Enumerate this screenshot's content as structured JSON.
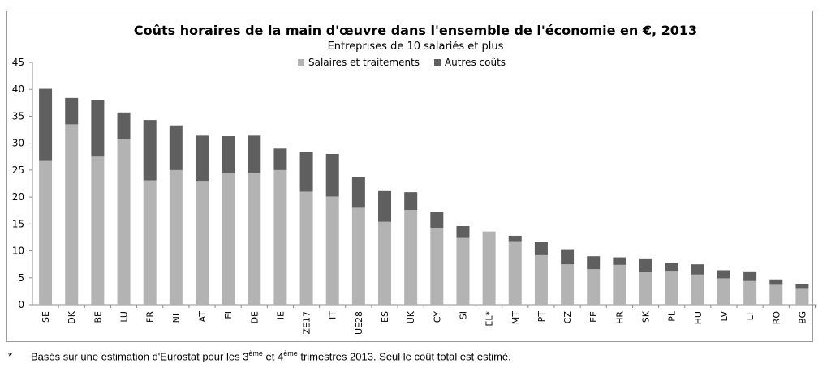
{
  "chart_data": {
    "type": "bar",
    "stacked": true,
    "title": "Coûts horaires de la main d'œuvre dans l'ensemble de l'économie en €, 2013",
    "subtitle": "Entreprises de 10 salariés et plus",
    "categories": [
      "SE",
      "DK",
      "BE",
      "LU",
      "FR",
      "NL",
      "AT",
      "FI",
      "DE",
      "IE",
      "ZE17",
      "IT",
      "UE28",
      "ES",
      "UK",
      "CY",
      "SI",
      "EL*",
      "MT",
      "PT",
      "CZ",
      "EE",
      "HR",
      "SK",
      "PL",
      "HU",
      "LV",
      "LT",
      "RO",
      "BG"
    ],
    "series": [
      {
        "name": "Salaires et traitements",
        "color": "#b3b3b3",
        "values": [
          26.7,
          33.5,
          27.5,
          30.8,
          23.1,
          25.0,
          23.0,
          24.4,
          24.5,
          25.0,
          21.0,
          20.1,
          18.0,
          15.4,
          17.6,
          14.3,
          12.4,
          13.6,
          11.8,
          9.2,
          7.5,
          6.6,
          7.4,
          6.1,
          6.3,
          5.6,
          4.9,
          4.4,
          3.7,
          3.1
        ]
      },
      {
        "name": "Autres coûts",
        "color": "#5f5f5f",
        "values": [
          13.4,
          4.9,
          10.5,
          4.9,
          11.2,
          8.3,
          8.4,
          6.9,
          6.9,
          4.0,
          7.4,
          7.9,
          5.7,
          5.7,
          3.3,
          2.9,
          2.2,
          0,
          1.0,
          2.4,
          2.8,
          2.4,
          1.4,
          2.5,
          1.4,
          1.9,
          1.5,
          1.8,
          1.0,
          0.7
        ]
      }
    ],
    "ylim": [
      0,
      45
    ],
    "yticks": [
      0,
      5,
      10,
      15,
      20,
      25,
      30,
      35,
      40,
      45
    ],
    "xlabel": "",
    "ylabel": "",
    "grid": false,
    "legend_position": "top-center"
  },
  "footnote": {
    "marker": "*",
    "text_before": "Basés sur une estimation d'Eurostat pour les 3",
    "sup1": "ème",
    "text_middle": " et 4",
    "sup2": "ème",
    "text_after": " trimestres 2013. Seul le coût total est estimé."
  }
}
